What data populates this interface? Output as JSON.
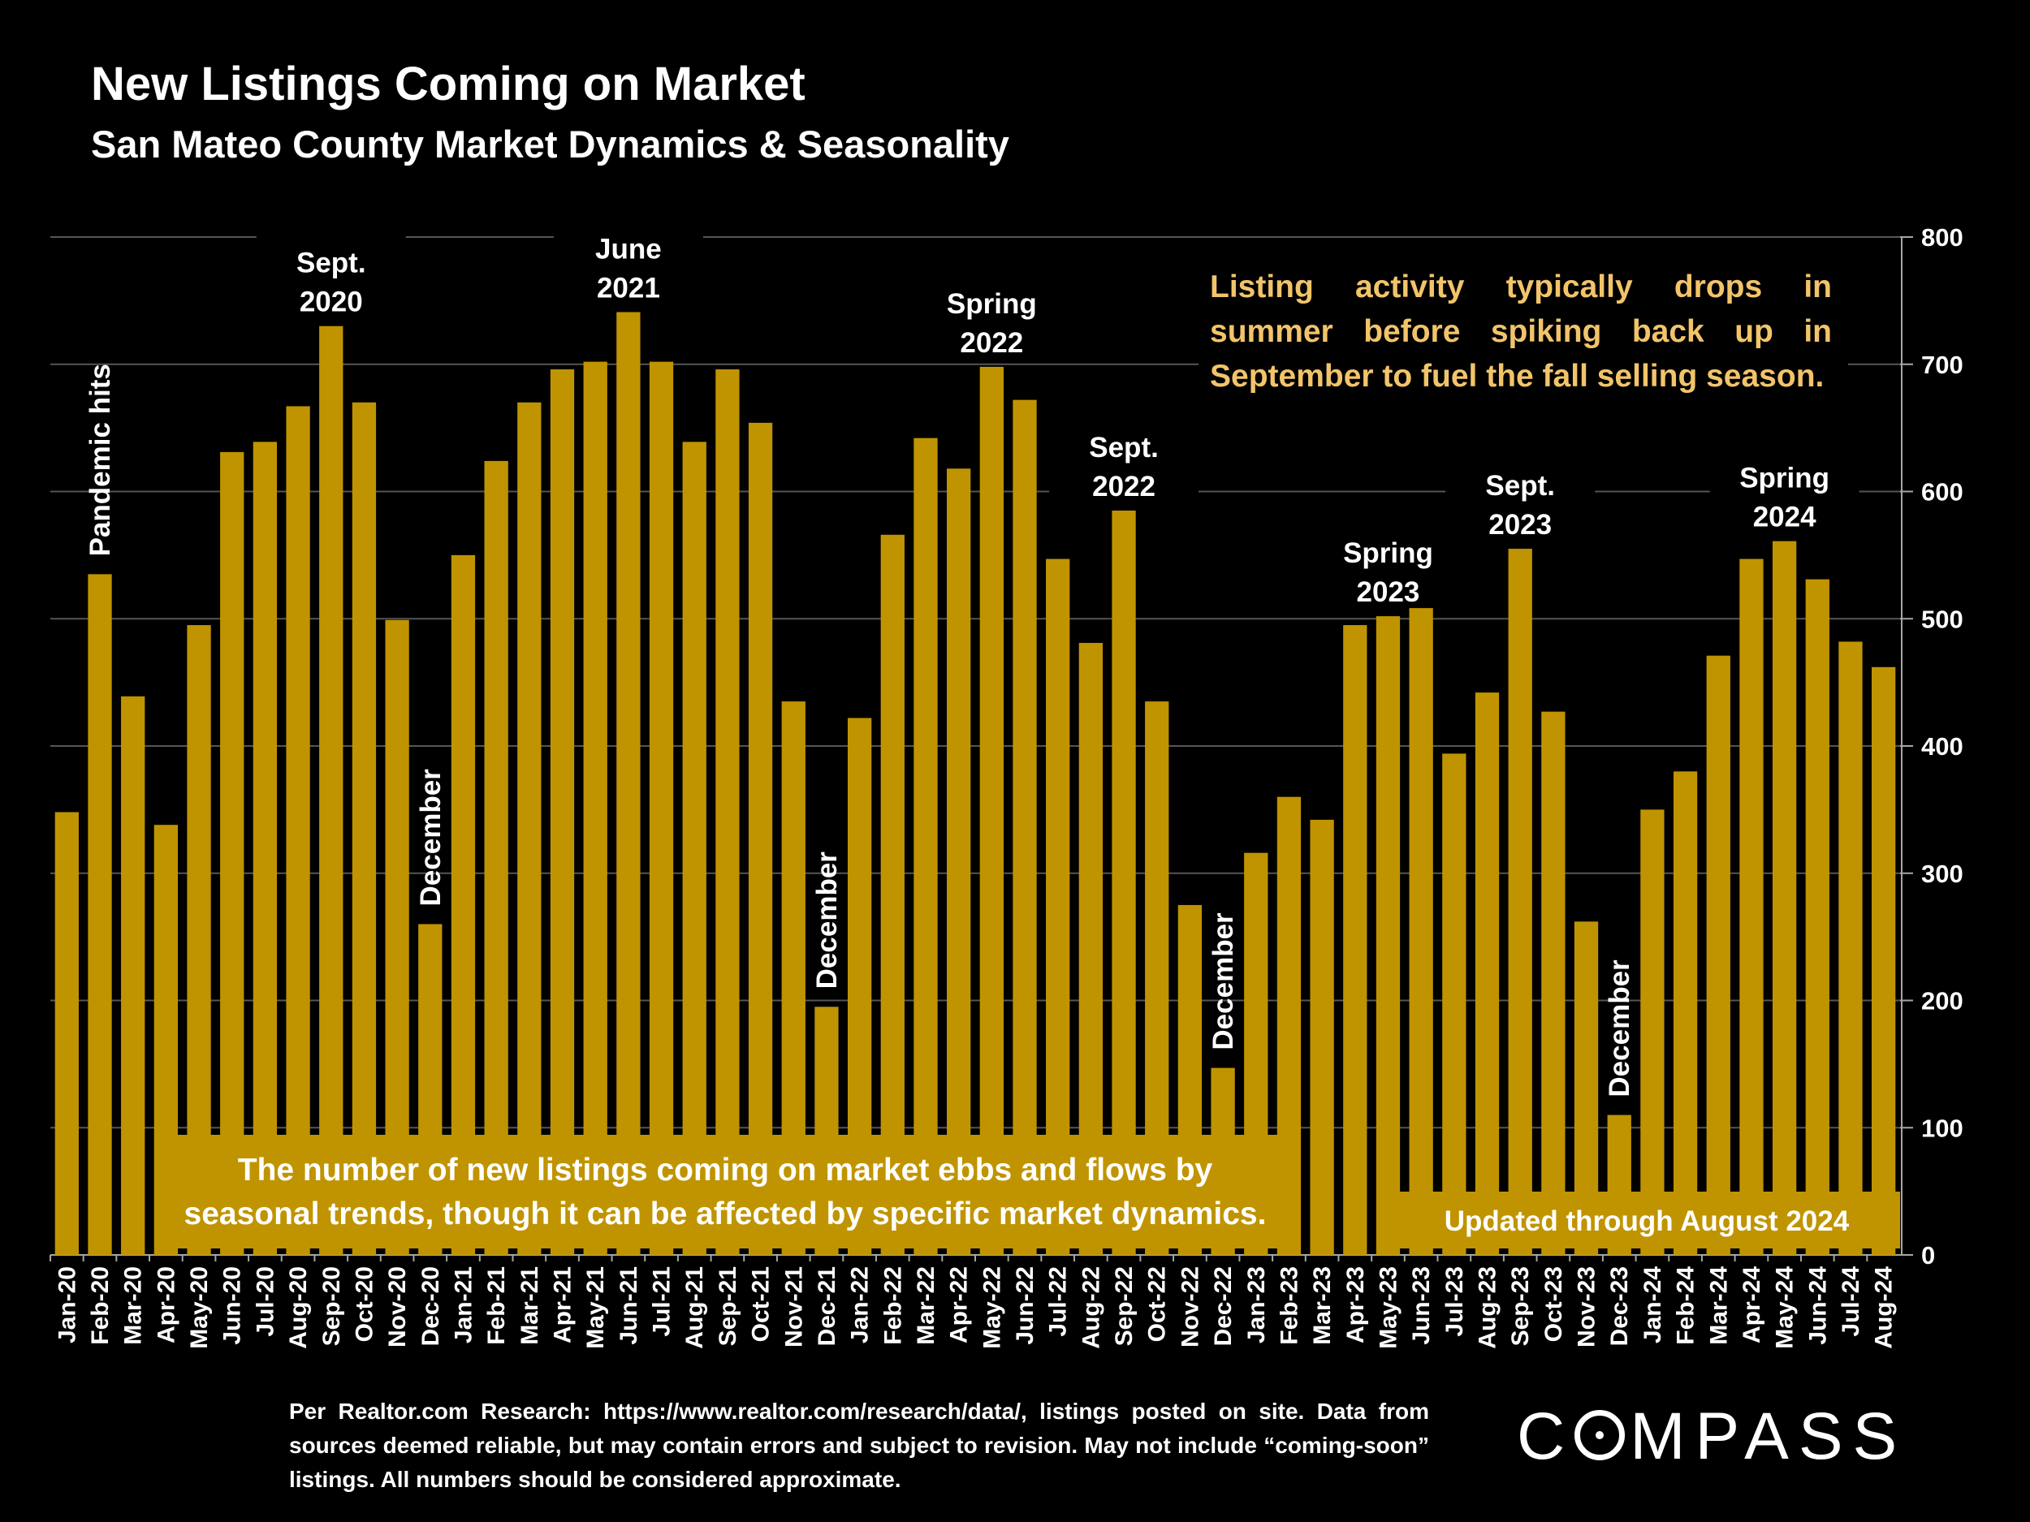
{
  "header": {
    "title": "New Listings Coming on Market",
    "subtitle": "San Mateo County Market Dynamics & Seasonality"
  },
  "colors": {
    "background": "#000000",
    "bar": "#c09400",
    "note_text": "#f2c46a",
    "text": "#ffffff",
    "grid": "#555555"
  },
  "notes": {
    "seasonality": "Listing activity typically drops in summer before spiking back up in September to fuel the fall selling season.",
    "ebb_flow": "The number of new listings coming on market ebbs and flows by seasonal trends, though it can be affected by specific market dynamics.",
    "updated": "Updated through August 2024"
  },
  "footer": {
    "source": "Per Realtor.com Research:  https://www.realtor.com/research/data/, listings posted on site. Data from sources deemed reliable, but may contain errors and subject to revision. May not include “coming-soon” listings. All numbers should be considered approximate.",
    "logo": "COMPASS"
  },
  "chart_data": {
    "type": "bar",
    "title": "New Listings Coming on Market",
    "subtitle": "San Mateo County Market Dynamics & Seasonality",
    "xlabel": "",
    "ylabel": "",
    "ylim": [
      0,
      800
    ],
    "yticks": [
      0,
      100,
      200,
      300,
      400,
      500,
      600,
      700,
      800
    ],
    "y_axis_side": "right",
    "grid": true,
    "legend": "none",
    "categories": [
      "Jan-20",
      "Feb-20",
      "Mar-20",
      "Apr-20",
      "May-20",
      "Jun-20",
      "Jul-20",
      "Aug-20",
      "Sep-20",
      "Oct-20",
      "Nov-20",
      "Dec-20",
      "Jan-21",
      "Feb-21",
      "Mar-21",
      "Apr-21",
      "May-21",
      "Jun-21",
      "Jul-21",
      "Aug-21",
      "Sep-21",
      "Oct-21",
      "Nov-21",
      "Dec-21",
      "Jan-22",
      "Feb-22",
      "Mar-22",
      "Apr-22",
      "May-22",
      "Jun-22",
      "Jul-22",
      "Aug-22",
      "Sep-22",
      "Oct-22",
      "Nov-22",
      "Dec-22",
      "Jan-23",
      "Feb-23",
      "Mar-23",
      "Apr-23",
      "May-23",
      "Jun-23",
      "Jul-23",
      "Aug-23",
      "Sep-23",
      "Oct-23",
      "Nov-23",
      "Dec-23",
      "Jan-24",
      "Feb-24",
      "Mar-24",
      "Apr-24",
      "May-24",
      "Jun-24",
      "Jul-24",
      "Aug-24"
    ],
    "values": [
      348,
      535,
      439,
      338,
      495,
      631,
      639,
      667,
      730,
      670,
      499,
      260,
      550,
      624,
      670,
      696,
      702,
      741,
      702,
      639,
      696,
      654,
      435,
      195,
      422,
      566,
      642,
      618,
      698,
      672,
      547,
      481,
      585,
      435,
      275,
      147,
      316,
      360,
      342,
      495,
      502,
      512,
      394,
      442,
      555,
      427,
      262,
      110,
      350,
      380,
      471,
      547,
      561,
      531,
      482,
      462
    ],
    "annotations": [
      {
        "text": "Pandemic hits",
        "at": "Feb-20",
        "rotated": true
      },
      {
        "text": "Sept. 2020",
        "at": "Sep-20"
      },
      {
        "text": "December",
        "at": "Dec-20",
        "rotated": true
      },
      {
        "text": "June 2021",
        "at": "Jun-21"
      },
      {
        "text": "December",
        "at": "Dec-21",
        "rotated": true
      },
      {
        "text": "Spring 2022",
        "at": "May-22"
      },
      {
        "text": "Sept. 2022",
        "at": "Sep-22"
      },
      {
        "text": "December",
        "at": "Dec-22",
        "rotated": true
      },
      {
        "text": "Spring 2023",
        "at": "May-23"
      },
      {
        "text": "Sept. 2023",
        "at": "Sep-23"
      },
      {
        "text": "December",
        "at": "Dec-23",
        "rotated": true
      },
      {
        "text": "Spring 2024",
        "at": "May-24"
      }
    ]
  }
}
